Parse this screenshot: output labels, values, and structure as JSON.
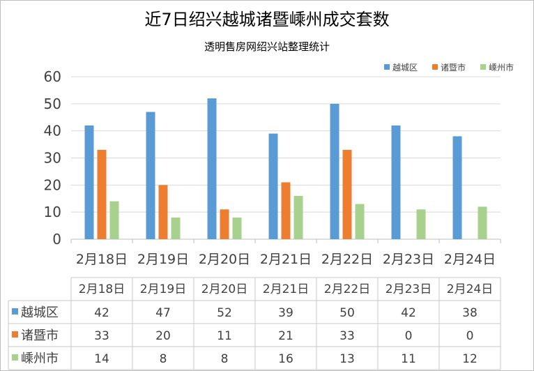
{
  "chart_data": {
    "type": "bar",
    "title": "近7日绍兴越城诸暨嵊州成交套数",
    "subtitle": "透明售房网绍兴站整理统计",
    "categories": [
      "2月18日",
      "2月19日",
      "2月20日",
      "2月21日",
      "2月22日",
      "2月23日",
      "2月24日"
    ],
    "series": [
      {
        "name": "越城区",
        "color": "#5b9bd5",
        "values": [
          42,
          47,
          52,
          39,
          50,
          42,
          38
        ]
      },
      {
        "name": "诸暨市",
        "color": "#ed7d31",
        "values": [
          33,
          20,
          11,
          21,
          33,
          0,
          0
        ]
      },
      {
        "name": "嵊州市",
        "color": "#a9d18e",
        "values": [
          14,
          8,
          8,
          16,
          13,
          11,
          12
        ]
      }
    ],
    "ylim": [
      0,
      60
    ],
    "yticks": [
      0,
      10,
      20,
      30,
      40,
      50,
      60
    ],
    "grid": true,
    "legend": "top-right",
    "data_table": true
  }
}
